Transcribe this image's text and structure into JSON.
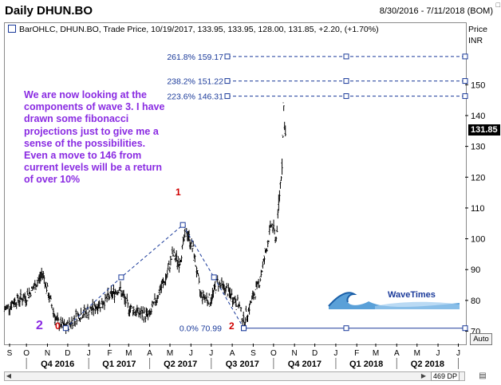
{
  "header": {
    "title": "Daily DHUN.BO",
    "date_range": "8/30/2016 - 7/11/2018 (BOM)"
  },
  "legend_text": "BarOHLC, DHUN.BO, Trade Price, 10/19/2017, 133.95, 133.95, 128.00, 131.85, +2.20, (+1.70%)",
  "axis": {
    "price_label": "Price",
    "currency": "INR",
    "last_price_tag": "131.85",
    "auto_label": "Auto"
  },
  "annotation": "We are now looking at the components of wave 3. I have drawn some fibonacci projections just to give me a sense of the possibilities. Even a move to 146 from current levels will be a return of over 10%",
  "wave_labels": {
    "big_2": "2",
    "zero": "0",
    "one": "1",
    "two": "2"
  },
  "logo_text": "WaveTimes",
  "status": {
    "dp": "469 DP"
  },
  "colors": {
    "fib_line": "#1a3a9a",
    "annotation": "#8a2be2",
    "wave_red": "#d00000",
    "price_bars": "#000000"
  },
  "chart_data": {
    "type": "ohlc",
    "ylim": [
      66,
      170
    ],
    "y_ticks": [
      70,
      80,
      90,
      100,
      110,
      120,
      130,
      140,
      150
    ],
    "month_ticks": [
      "S",
      "O",
      "N",
      "D",
      "J",
      "F",
      "M",
      "A",
      "M",
      "J",
      "J",
      "A",
      "S",
      "O",
      "N",
      "D",
      "J",
      "F",
      "M",
      "A",
      "M",
      "J",
      "J"
    ],
    "quarters": [
      "Q4 2016",
      "Q1 2017",
      "Q2 2017",
      "Q3 2017",
      "Q4 2017",
      "Q1 2018",
      "Q2 2018"
    ],
    "fib_levels": [
      {
        "label": "261.8% 159.17",
        "value": 159.17
      },
      {
        "label": "238.2% 151.22",
        "value": 151.22
      },
      {
        "label": "223.6% 146.31",
        "value": 146.31
      },
      {
        "label": "0.0% 70.99",
        "value": 70.99
      }
    ],
    "price_path": [
      {
        "date": "2016-08-30",
        "close": 77
      },
      {
        "date": "2016-09-15",
        "close": 80
      },
      {
        "date": "2016-09-30",
        "close": 81
      },
      {
        "date": "2016-10-15",
        "close": 85
      },
      {
        "date": "2016-10-25",
        "close": 89
      },
      {
        "date": "2016-11-05",
        "close": 80
      },
      {
        "date": "2016-11-15",
        "close": 73
      },
      {
        "date": "2016-11-28",
        "close": 71
      },
      {
        "date": "2016-12-15",
        "close": 75
      },
      {
        "date": "2017-01-05",
        "close": 77
      },
      {
        "date": "2017-01-25",
        "close": 80
      },
      {
        "date": "2017-02-15",
        "close": 84
      },
      {
        "date": "2017-02-28",
        "close": 78
      },
      {
        "date": "2017-03-15",
        "close": 76
      },
      {
        "date": "2017-04-01",
        "close": 75
      },
      {
        "date": "2017-04-15",
        "close": 83
      },
      {
        "date": "2017-04-25",
        "close": 87
      },
      {
        "date": "2017-05-05",
        "close": 95
      },
      {
        "date": "2017-05-15",
        "close": 92
      },
      {
        "date": "2017-05-25",
        "close": 103
      },
      {
        "date": "2017-06-05",
        "close": 96
      },
      {
        "date": "2017-06-15",
        "close": 82
      },
      {
        "date": "2017-06-30",
        "close": 80
      },
      {
        "date": "2017-07-10",
        "close": 86
      },
      {
        "date": "2017-07-25",
        "close": 83
      },
      {
        "date": "2017-08-10",
        "close": 79
      },
      {
        "date": "2017-08-18",
        "close": 73
      },
      {
        "date": "2017-08-30",
        "close": 80
      },
      {
        "date": "2017-09-10",
        "close": 86
      },
      {
        "date": "2017-09-20",
        "close": 96
      },
      {
        "date": "2017-09-28",
        "close": 105
      },
      {
        "date": "2017-10-05",
        "close": 100
      },
      {
        "date": "2017-10-10",
        "close": 115
      },
      {
        "date": "2017-10-14",
        "close": 126
      },
      {
        "date": "2017-10-16",
        "close": 143
      },
      {
        "date": "2017-10-18",
        "close": 135
      },
      {
        "date": "2017-10-19",
        "close": 131.85
      }
    ],
    "wave_points": [
      {
        "label": "0",
        "date": "2016-11-28",
        "value": 71
      },
      {
        "label": "",
        "date": "2017-02-18",
        "value": 87.5
      },
      {
        "label": "1",
        "date": "2017-05-20",
        "value": 104.5
      },
      {
        "label": "",
        "date": "2017-07-05",
        "value": 87.5
      },
      {
        "label": "2",
        "date": "2017-08-18",
        "value": 70.99
      }
    ]
  }
}
